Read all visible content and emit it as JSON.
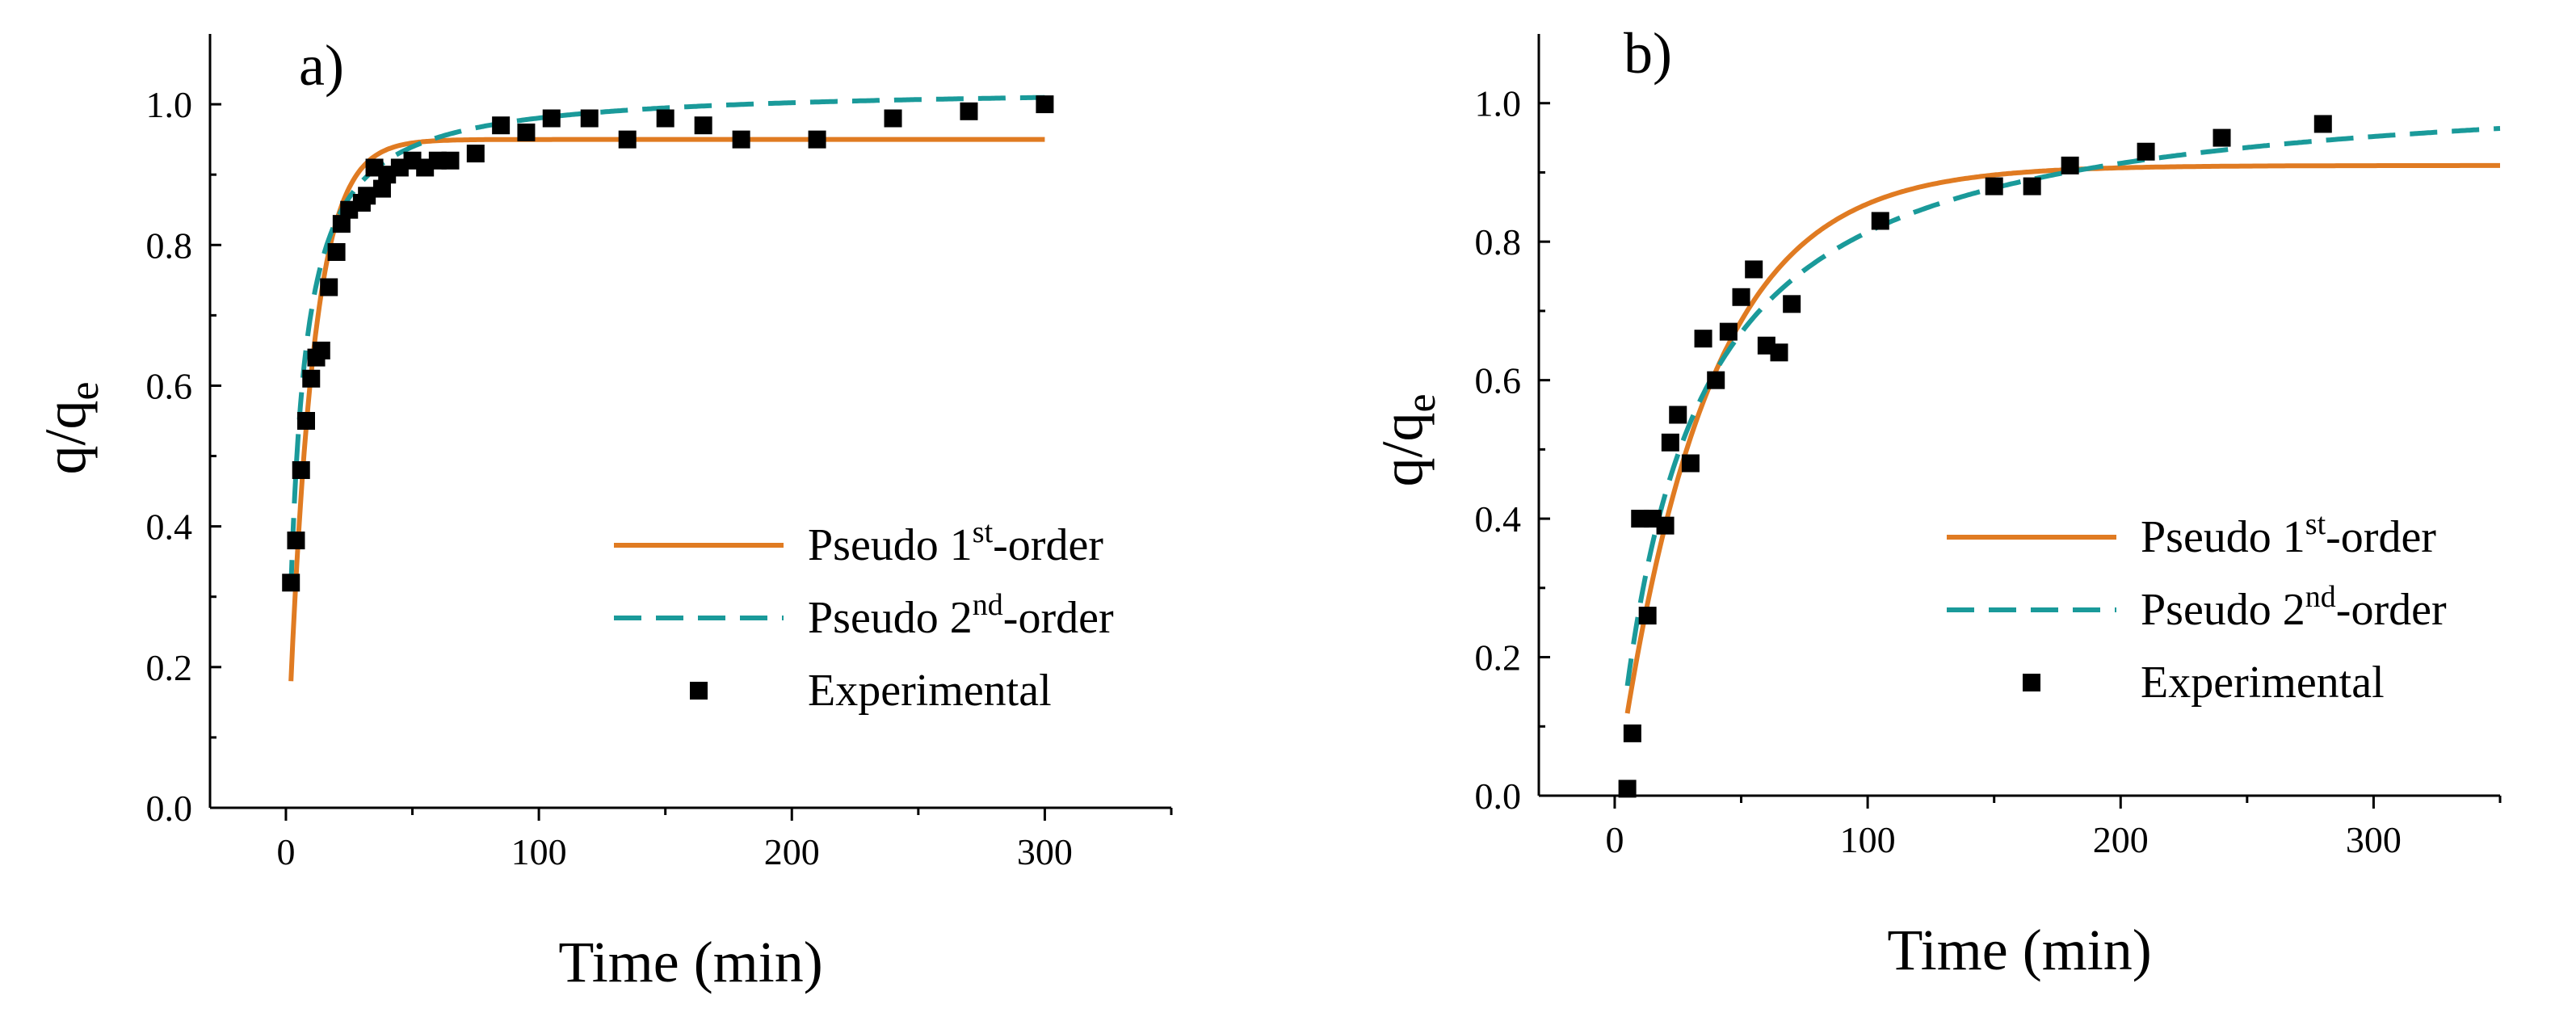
{
  "chart_data": [
    {
      "type": "scatter",
      "panel_label": "a)",
      "xlabel": "Time (min)",
      "ylabel": {
        "base": "q/q",
        "sub": "e"
      },
      "xlim": [
        -30,
        350
      ],
      "ylim": [
        0,
        1.1
      ],
      "xticks": [
        0,
        100,
        200,
        300
      ],
      "yticks": [
        0.0,
        0.2,
        0.4,
        0.6,
        0.8,
        1.0
      ],
      "legend_position": "bottom-right",
      "colors": {
        "first_order": "#E07B22",
        "second_order": "#1A9A9A",
        "experimental": "#000000"
      },
      "series": [
        {
          "key": "first_order",
          "legend": {
            "pre": "Pseudo 1",
            "sup": "st",
            "post": "-order"
          },
          "style": "solid",
          "params": {
            "qe": 0.95,
            "k": 0.105
          },
          "x_range": [
            2,
            300
          ]
        },
        {
          "key": "second_order",
          "legend": {
            "pre": "Pseudo 2",
            "sup": "nd",
            "post": "-order"
          },
          "style": "dashed",
          "params": {
            "qe": 1.025,
            "k": 0.22
          },
          "x_range": [
            2,
            300
          ]
        },
        {
          "key": "experimental",
          "legend": {
            "pre": "Experimental",
            "sup": "",
            "post": ""
          },
          "style": "markers",
          "points": [
            [
              2,
              0.32
            ],
            [
              4,
              0.38
            ],
            [
              6,
              0.48
            ],
            [
              8,
              0.55
            ],
            [
              10,
              0.61
            ],
            [
              12,
              0.64
            ],
            [
              14,
              0.65
            ],
            [
              17,
              0.74
            ],
            [
              20,
              0.79
            ],
            [
              22,
              0.83
            ],
            [
              25,
              0.85
            ],
            [
              30,
              0.86
            ],
            [
              32,
              0.87
            ],
            [
              35,
              0.91
            ],
            [
              38,
              0.88
            ],
            [
              40,
              0.9
            ],
            [
              45,
              0.91
            ],
            [
              50,
              0.92
            ],
            [
              55,
              0.91
            ],
            [
              60,
              0.92
            ],
            [
              65,
              0.92
            ],
            [
              75,
              0.93
            ],
            [
              85,
              0.97
            ],
            [
              95,
              0.96
            ],
            [
              105,
              0.98
            ],
            [
              120,
              0.98
            ],
            [
              135,
              0.95
            ],
            [
              150,
              0.98
            ],
            [
              165,
              0.97
            ],
            [
              180,
              0.95
            ],
            [
              210,
              0.95
            ],
            [
              240,
              0.98
            ],
            [
              270,
              0.99
            ],
            [
              300,
              1.0
            ]
          ]
        }
      ]
    },
    {
      "type": "scatter",
      "panel_label": "b)",
      "xlabel": "Time (min)",
      "ylabel": {
        "base": "q/q",
        "sub": "e"
      },
      "xlim": [
        -30,
        350
      ],
      "ylim": [
        0,
        1.1
      ],
      "xticks": [
        0,
        100,
        200,
        300
      ],
      "yticks": [
        0.0,
        0.2,
        0.4,
        0.6,
        0.8,
        1.0
      ],
      "legend_position": "bottom-right",
      "colors": {
        "first_order": "#E07B22",
        "second_order": "#1A9A9A",
        "experimental": "#000000"
      },
      "series": [
        {
          "key": "first_order",
          "legend": {
            "pre": "Pseudo 1",
            "sup": "st",
            "post": "-order"
          },
          "style": "solid",
          "params": {
            "qe": 0.91,
            "k": 0.028
          },
          "x_range": [
            5,
            350
          ]
        },
        {
          "key": "second_order",
          "legend": {
            "pre": "Pseudo 2",
            "sup": "nd",
            "post": "-order"
          },
          "style": "dashed",
          "params": {
            "qe": 1.04,
            "k": 0.036
          },
          "x_range": [
            5,
            350
          ]
        },
        {
          "key": "experimental",
          "legend": {
            "pre": "Experimental",
            "sup": "",
            "post": ""
          },
          "style": "markers",
          "points": [
            [
              5,
              0.01
            ],
            [
              7,
              0.09
            ],
            [
              10,
              0.4
            ],
            [
              13,
              0.26
            ],
            [
              15,
              0.4
            ],
            [
              20,
              0.39
            ],
            [
              22,
              0.51
            ],
            [
              25,
              0.55
            ],
            [
              30,
              0.48
            ],
            [
              35,
              0.66
            ],
            [
              40,
              0.6
            ],
            [
              45,
              0.67
            ],
            [
              50,
              0.72
            ],
            [
              55,
              0.76
            ],
            [
              60,
              0.65
            ],
            [
              65,
              0.64
            ],
            [
              70,
              0.71
            ],
            [
              105,
              0.83
            ],
            [
              150,
              0.88
            ],
            [
              165,
              0.88
            ],
            [
              180,
              0.91
            ],
            [
              210,
              0.93
            ],
            [
              240,
              0.95
            ],
            [
              280,
              0.97
            ]
          ]
        }
      ]
    }
  ]
}
